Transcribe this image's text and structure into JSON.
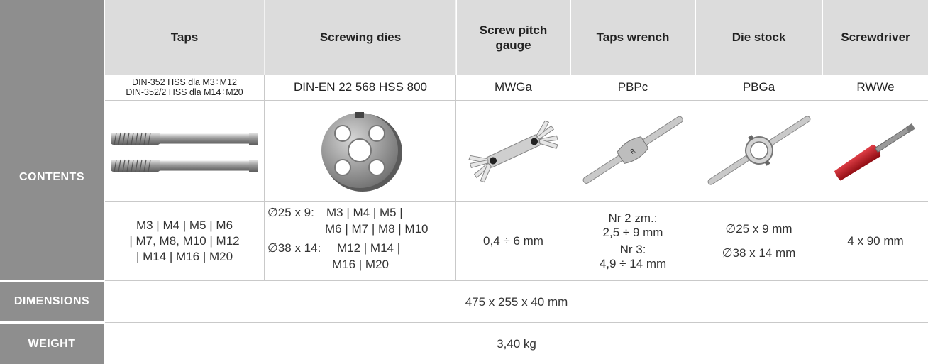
{
  "labels": {
    "contents": "CONTENTS",
    "dimensions": "DIMENSIONS",
    "weight": "WEIGHT"
  },
  "headers": [
    "Taps",
    "Screwing dies",
    "Screw pitch gauge",
    "Taps wrench",
    "Die stock",
    "Screwdriver"
  ],
  "models": {
    "taps_line1": "DIN-352 HSS dla M3÷M12",
    "taps_line2": "DIN-352/2 HSS dla M14÷M20",
    "dies": "DIN-EN 22 568 HSS 800",
    "gauge": "MWGa",
    "wrench": "PBPc",
    "diestock": "PBGa",
    "screwdriver": "RWWe"
  },
  "specs": {
    "taps": [
      "M3 | M4 | M5 | M6",
      "| M7, M8, M10 | M12",
      "| M14 | M16 | M20"
    ],
    "dies": [
      "∅25 x 9:",
      "M3 | M4 | M5 |",
      "M6 | M7 | M8 | M10",
      "∅38 x 14:",
      "M12 | M14 |",
      "M16 | M20"
    ],
    "gauge": "0,4 ÷ 6 mm",
    "wrench": [
      "Nr 2 zm.:",
      "2,5 ÷ 9 mm",
      "Nr 3:",
      "4,9 ÷ 14 mm"
    ],
    "diestock": [
      "∅25 x 9 mm",
      "∅38 x 14 mm"
    ],
    "screwdriver": "4 x 90 mm"
  },
  "dimensions": "475 x 255 x 40 mm",
  "weight": "3,40 kg",
  "images": [
    "taps-image",
    "die-image",
    "pitch-gauge-image",
    "tap-wrench-image",
    "die-stock-image",
    "screwdriver-image"
  ],
  "colors": {
    "label_bg": "#8e8e8e",
    "header_bg": "#dcdcdc",
    "grid": "#c9c9c9",
    "screwdriver_handle": "#c8141c"
  }
}
